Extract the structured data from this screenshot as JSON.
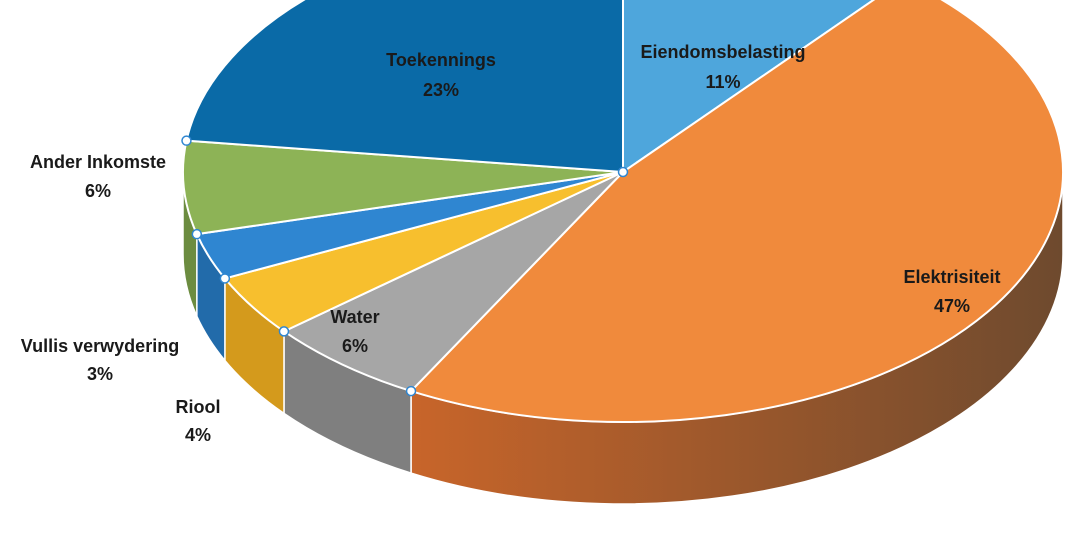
{
  "chart_data": {
    "type": "pie",
    "style": "3d-exploded-none",
    "slices": [
      {
        "label": "Eiendomsbelasting",
        "percent_text": "11%",
        "value": 11,
        "color": "#4EA6DC",
        "side_color": "#3A86B8"
      },
      {
        "label": "Elektrisiteit",
        "percent_text": "47%",
        "value": 47,
        "color": "#F08A3C",
        "side_color": "#B5602B"
      },
      {
        "label": "Water",
        "percent_text": "6%",
        "value": 6,
        "color": "#A6A6A6",
        "side_color": "#7F7F7F"
      },
      {
        "label": "Riool",
        "percent_text": "4%",
        "value": 4,
        "color": "#F7BF2E",
        "side_color": "#D49A1C"
      },
      {
        "label": "Vullis verwydering",
        "percent_text": "3%",
        "value": 3,
        "color": "#2F86D1",
        "side_color": "#226BAA"
      },
      {
        "label": "Ander Inkomste",
        "percent_text": "6%",
        "value": 6,
        "color": "#8DB356",
        "side_color": "#6C8C40"
      },
      {
        "label": "Toekennings",
        "percent_text": "23%",
        "value": 23,
        "color": "#0A6AA7",
        "side_color": "#07507F"
      }
    ],
    "legend": "none",
    "data_labels": "on-slice-or-outside"
  }
}
